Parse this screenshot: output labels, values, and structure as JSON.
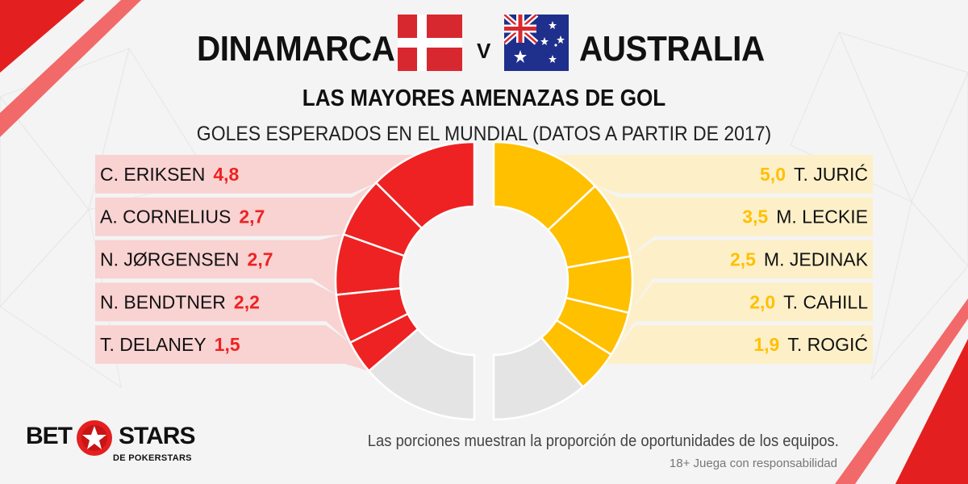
{
  "header": {
    "team_left": "DINAMARCA",
    "vs": "V",
    "team_right": "AUSTRALIA"
  },
  "chart_data": {
    "type": "pie",
    "title": "LAS MAYORES AMENAZAS DE GOL",
    "subtitle": "GOLES ESPERADOS EN EL MUNDIAL (DATOS A PARTIR DE 2017)",
    "series": [
      {
        "name": "DINAMARCA",
        "color": "#ee2222",
        "rest_color": "#e4e4e4",
        "band_color": "#f9d2d2",
        "players": [
          {
            "name": "C. ERIKSEN",
            "value": 4.8,
            "label": "4,8"
          },
          {
            "name": "A. CORNELIUS",
            "value": 2.7,
            "label": "2,7"
          },
          {
            "name": "N. JØRGENSEN",
            "value": 2.7,
            "label": "2,7"
          },
          {
            "name": "N. BENDTNER",
            "value": 2.2,
            "label": "2,2"
          },
          {
            "name": "T. DELANEY",
            "value": 1.5,
            "label": "1,5"
          }
        ]
      },
      {
        "name": "AUSTRALIA",
        "color": "#ffc000",
        "rest_color": "#e4e4e4",
        "band_color": "#fdf0c8",
        "players": [
          {
            "name": "T. JURIĆ",
            "value": 5.0,
            "label": "5,0"
          },
          {
            "name": "M. LECKIE",
            "value": 3.5,
            "label": "3,5"
          },
          {
            "name": "M. JEDINAK",
            "value": 2.5,
            "label": "2,5"
          },
          {
            "name": "T. CAHILL",
            "value": 2.0,
            "label": "2,0"
          },
          {
            "name": "T. ROGIĆ",
            "value": 1.9,
            "label": "1,9"
          }
        ]
      }
    ]
  },
  "footnote": "Las porciones muestran la proporción de oportunidades de los equipos.",
  "disclaimer": "18+ Juega con responsabilidad",
  "logo": {
    "left": "BET",
    "right": "STARS",
    "sub": "DE POKERSTARS"
  }
}
